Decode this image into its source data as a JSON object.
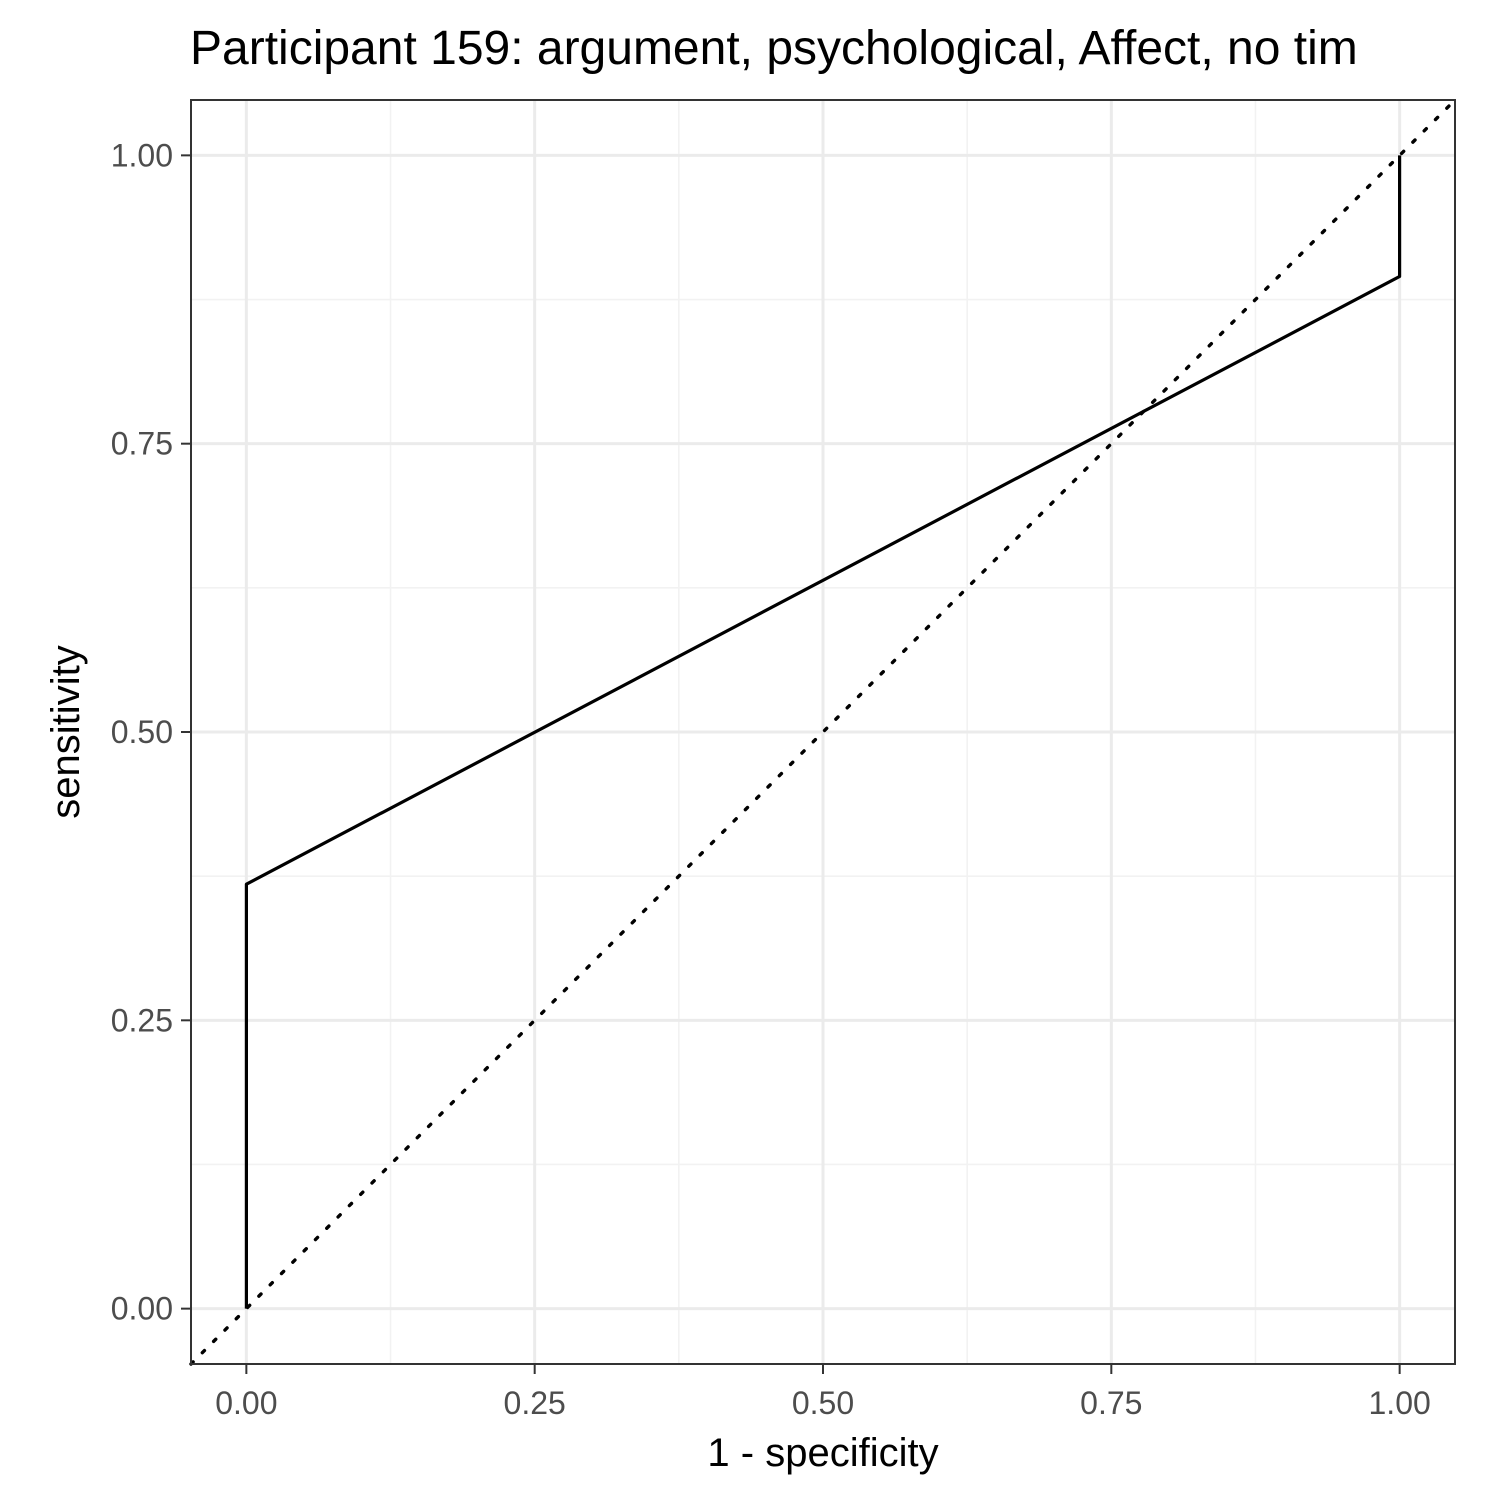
{
  "chart_data": {
    "type": "line",
    "title": "Participant 159: argument, psychological, Affect, no tim",
    "xlabel": "1 - specificity",
    "ylabel": "sensitivity",
    "xlim": [
      -0.048,
      1.048
    ],
    "ylim": [
      -0.048,
      1.048
    ],
    "x_ticks": [
      "0.00",
      "0.25",
      "0.50",
      "0.75",
      "1.00"
    ],
    "y_ticks": [
      "0.00",
      "0.25",
      "0.50",
      "0.75",
      "1.00"
    ],
    "grid": true,
    "series": [
      {
        "style": "solid",
        "points": [
          [
            0.0,
            0.0
          ],
          [
            0.0,
            0.368
          ],
          [
            1.0,
            0.895
          ],
          [
            1.0,
            1.0
          ]
        ]
      },
      {
        "style": "dotted",
        "points": [
          [
            -0.048,
            -0.048
          ],
          [
            1.048,
            1.048
          ]
        ]
      }
    ],
    "colors": {
      "line": "#000000",
      "panel_border": "#333333",
      "grid_major": "#ebebeb",
      "grid_minor": "#f2f2f2",
      "tick_label": "#4d4d4d"
    }
  }
}
